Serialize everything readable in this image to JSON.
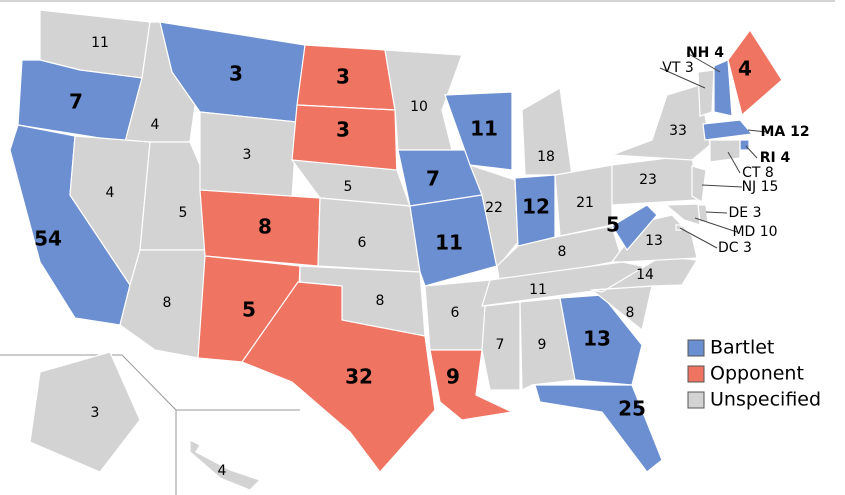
{
  "states": [
    {
      "label": "11",
      "color": "#d3d3d3"
    },
    {
      "label": "7",
      "color": "#6b8fd0"
    },
    {
      "label": "54",
      "color": "#6b8fd0"
    },
    {
      "label": "4",
      "color": "#d3d3d3"
    },
    {
      "label": "4",
      "color": "#d3d3d3"
    },
    {
      "label": "5",
      "color": "#d3d3d3"
    },
    {
      "label": "8",
      "color": "#d3d3d3"
    },
    {
      "label": "3",
      "color": "#6b8fd0"
    },
    {
      "label": "3",
      "color": "#d3d3d3"
    },
    {
      "label": "8",
      "color": "#ef7462"
    },
    {
      "label": "5",
      "color": "#ef7462"
    },
    {
      "label": "3",
      "color": "#ef7462"
    },
    {
      "label": "3",
      "color": "#ef7462"
    },
    {
      "label": "5",
      "color": "#d3d3d3"
    },
    {
      "label": "6",
      "color": "#d3d3d3"
    },
    {
      "label": "8",
      "color": "#d3d3d3"
    },
    {
      "label": "32",
      "color": "#ef7462"
    },
    {
      "label": "10",
      "color": "#d3d3d3"
    },
    {
      "label": "7",
      "color": "#6b8fd0"
    },
    {
      "label": "11",
      "color": "#6b8fd0"
    },
    {
      "label": "6",
      "color": "#d3d3d3"
    },
    {
      "label": "9",
      "color": "#ef7462"
    },
    {
      "label": "11",
      "color": "#6b8fd0"
    },
    {
      "label": "22",
      "color": "#d3d3d3"
    },
    {
      "label": "18",
      "color": "#d3d3d3"
    },
    {
      "label": "12",
      "color": "#6b8fd0"
    },
    {
      "label": "21",
      "color": "#d3d3d3"
    },
    {
      "label": "8",
      "color": "#d3d3d3"
    },
    {
      "label": "11",
      "color": "#d3d3d3"
    },
    {
      "label": "7",
      "color": "#d3d3d3"
    },
    {
      "label": "9",
      "color": "#d3d3d3"
    },
    {
      "label": "13",
      "color": "#6b8fd0"
    },
    {
      "label": "25",
      "color": "#6b8fd0"
    },
    {
      "label": "8",
      "color": "#d3d3d3"
    },
    {
      "label": "14",
      "color": "#d3d3d3"
    },
    {
      "label": "13",
      "color": "#d3d3d3"
    },
    {
      "label": "5",
      "color": "#6b8fd0"
    },
    {
      "label": "23",
      "color": "#d3d3d3"
    },
    {
      "label": "33",
      "color": "#d3d3d3"
    },
    {
      "label": "VT 3",
      "color": "#d3d3d3"
    },
    {
      "label": "NH 4",
      "color": "#6b8fd0"
    },
    {
      "label": "4",
      "color": "#ef7462"
    },
    {
      "label": "MA 12",
      "color": "#6b8fd0"
    },
    {
      "label": "RI 4",
      "color": "#6b8fd0"
    },
    {
      "label": "CT 8",
      "color": "#d3d3d3"
    },
    {
      "label": "NJ 15",
      "color": "#d3d3d3"
    },
    {
      "label": "DE 3",
      "color": "#d3d3d3"
    },
    {
      "label": "MD 10",
      "color": "#d3d3d3"
    },
    {
      "label": "DC 3",
      "color": "#d3d3d3"
    },
    {
      "label": "3",
      "color": "#d3d3d3"
    },
    {
      "label": "4",
      "color": "#d3d3d3"
    }
  ],
  "legend": [
    {
      "name": "Bartlet",
      "color": "#6b8fd0"
    },
    {
      "name": "Opponent",
      "color": "#ef7462"
    },
    {
      "name": "Unspecified",
      "color": "#d3d3d3"
    }
  ]
}
